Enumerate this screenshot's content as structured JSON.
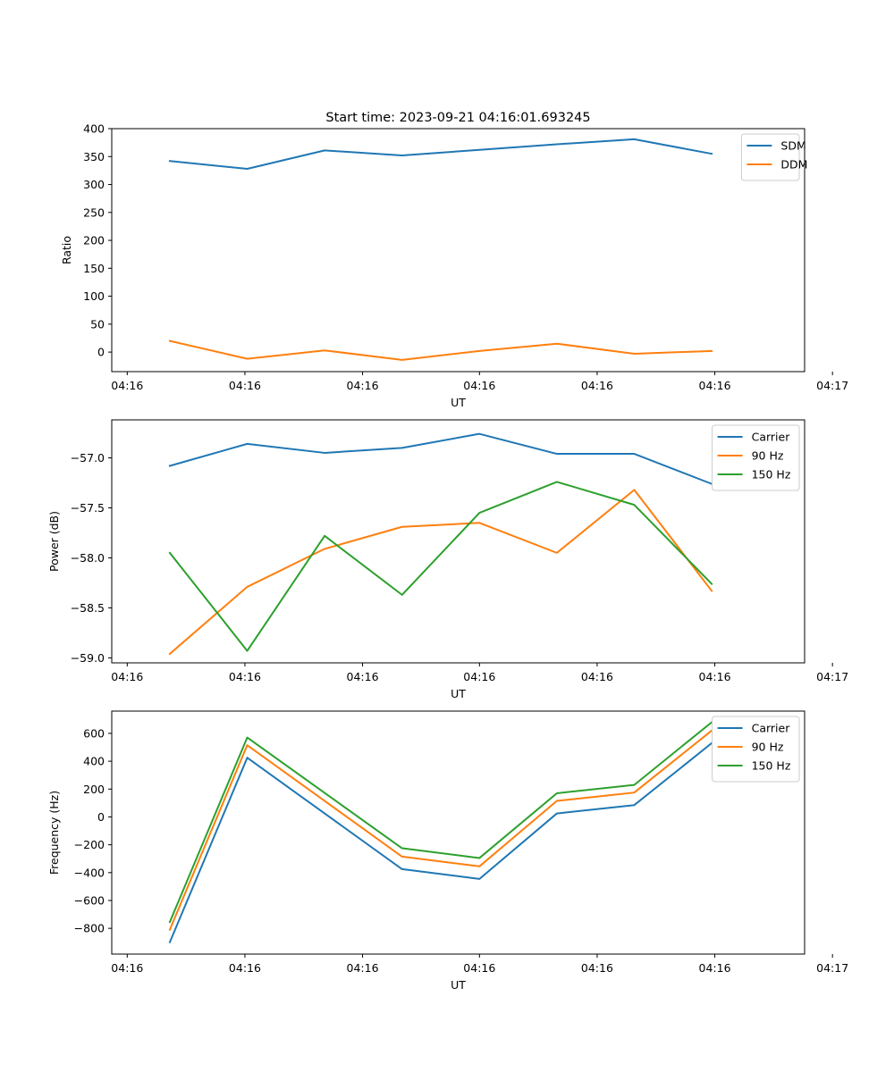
{
  "figure_title": "Start time: 2023-09-21 04:16:01.693245",
  "chart_data": [
    {
      "type": "line",
      "title": "Start time: 2023-09-21 04:16:01.693245",
      "xlabel": "UT",
      "ylabel": "Ratio",
      "x": [
        1,
        2,
        3,
        4,
        5,
        6,
        7,
        8
      ],
      "xlim": [
        0.25,
        9.2
      ],
      "xticks": [
        0.45,
        1.97,
        3.49,
        5.0,
        6.52,
        8.04,
        9.56
      ],
      "xtick_labels": [
        "04:16",
        "04:16",
        "04:16",
        "04:16",
        "04:16",
        "04:16",
        "04:17"
      ],
      "ylim": [
        -35,
        400
      ],
      "yticks": [
        0,
        50,
        100,
        150,
        200,
        250,
        300,
        350,
        400
      ],
      "ytick_labels": [
        "0",
        "50",
        "100",
        "150",
        "200",
        "250",
        "300",
        "350",
        "400"
      ],
      "legend": "top-right",
      "series": [
        {
          "name": "SDM",
          "color": "#1f77b4",
          "values": [
            342,
            328,
            361,
            352,
            362,
            372,
            381,
            355
          ]
        },
        {
          "name": "DDM",
          "color": "#ff7f0e",
          "values": [
            20,
            -12,
            3,
            -14,
            2,
            15,
            -3,
            2
          ]
        }
      ]
    },
    {
      "type": "line",
      "xlabel": "UT",
      "ylabel": "Power (dB)",
      "x": [
        1,
        2,
        3,
        4,
        5,
        6,
        7,
        8
      ],
      "xlim": [
        0.25,
        9.2
      ],
      "xticks": [
        0.45,
        1.97,
        3.49,
        5.0,
        6.52,
        8.04,
        9.56
      ],
      "xtick_labels": [
        "04:16",
        "04:16",
        "04:16",
        "04:16",
        "04:16",
        "04:16",
        "04:17"
      ],
      "ylim": [
        -59.05,
        -56.62
      ],
      "yticks": [
        -59.0,
        -58.5,
        -58.0,
        -57.5,
        -57.0
      ],
      "ytick_labels": [
        "−59.0",
        "−58.5",
        "−58.0",
        "−57.5",
        "−57.0"
      ],
      "legend": "top-right",
      "series": [
        {
          "name": "Carrier",
          "color": "#1f77b4",
          "values": [
            -57.08,
            -56.86,
            -56.95,
            -56.9,
            -56.76,
            -56.96,
            -56.96,
            -57.26
          ]
        },
        {
          "name": "90 Hz",
          "color": "#ff7f0e",
          "values": [
            -58.96,
            -58.29,
            -57.91,
            -57.69,
            -57.65,
            -57.95,
            -57.32,
            -58.33
          ]
        },
        {
          "name": "150 Hz",
          "color": "#2ca02c",
          "values": [
            -57.95,
            -58.93,
            -57.78,
            -58.37,
            -57.55,
            -57.24,
            -57.47,
            -58.26
          ]
        }
      ]
    },
    {
      "type": "line",
      "xlabel": "UT",
      "ylabel": "Frequency (Hz)",
      "x": [
        1,
        2,
        3,
        4,
        5,
        6,
        7,
        8
      ],
      "xlim": [
        0.25,
        9.2
      ],
      "xticks": [
        0.45,
        1.97,
        3.49,
        5.0,
        6.52,
        8.04,
        9.56
      ],
      "xtick_labels": [
        "04:16",
        "04:16",
        "04:16",
        "04:16",
        "04:16",
        "04:16",
        "04:17"
      ],
      "ylim": [
        -985,
        760
      ],
      "yticks": [
        -800,
        -600,
        -400,
        -200,
        0,
        200,
        400,
        600
      ],
      "ytick_labels": [
        "−800",
        "−600",
        "−400",
        "−200",
        "0",
        "200",
        "400",
        "600"
      ],
      "legend": "top-right",
      "series": [
        {
          "name": "Carrier",
          "color": "#1f77b4",
          "points": [
            [
              1,
              -900
            ],
            [
              2,
              425
            ],
            [
              4,
              -375
            ],
            [
              5,
              -445
            ],
            [
              6,
              25
            ],
            [
              7,
              85
            ],
            [
              8,
              530
            ]
          ]
        },
        {
          "name": "90 Hz",
          "color": "#ff7f0e",
          "points": [
            [
              1,
              -810
            ],
            [
              2,
              515
            ],
            [
              4,
              -285
            ],
            [
              5,
              -355
            ],
            [
              6,
              115
            ],
            [
              7,
              175
            ],
            [
              8,
              620
            ]
          ]
        },
        {
          "name": "150 Hz",
          "color": "#2ca02c",
          "points": [
            [
              1,
              -755
            ],
            [
              2,
              570
            ],
            [
              4,
              -225
            ],
            [
              5,
              -295
            ],
            [
              6,
              170
            ],
            [
              7,
              230
            ],
            [
              8,
              680
            ]
          ]
        }
      ]
    }
  ]
}
